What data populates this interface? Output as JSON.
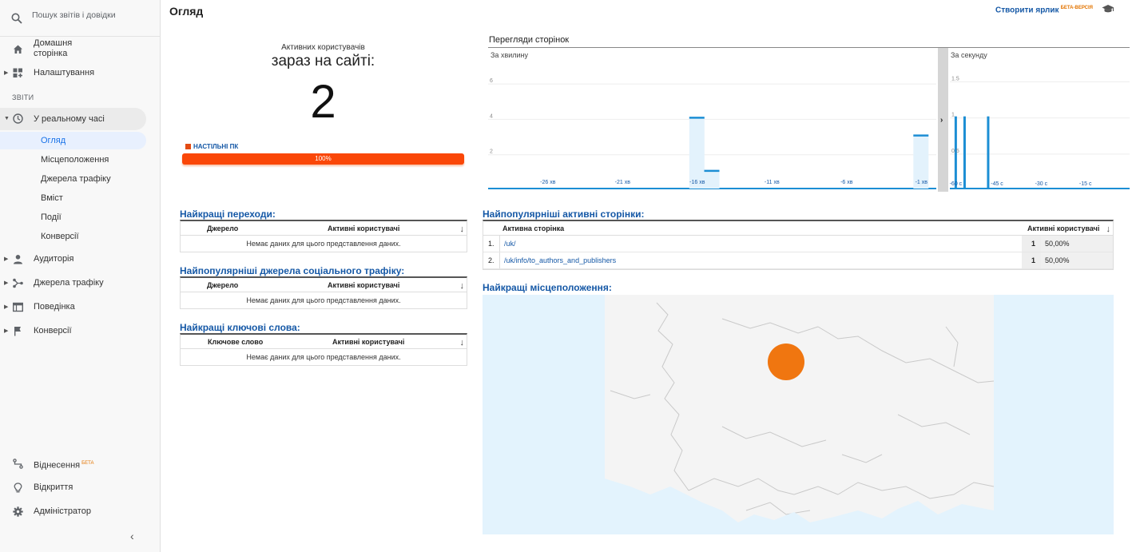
{
  "sidebar": {
    "search_placeholder": "Пошук звітів і довідки",
    "home": "Домашня сторінка",
    "customization": "Налаштування",
    "section_reports": "ЗВІТИ",
    "realtime": "У реальному часі",
    "realtime_items": [
      "Огляд",
      "Місцеположення",
      "Джерела трафіку",
      "Вміст",
      "Події",
      "Конверсії"
    ],
    "audience": "Аудиторія",
    "acquisition": "Джерела трафіку",
    "behavior": "Поведінка",
    "conversions": "Конверсії",
    "attribution": "Віднесення",
    "attribution_beta": "БЕТА",
    "discover": "Відкриття",
    "admin": "Адміністратор"
  },
  "header": {
    "title": "Огляд",
    "create_shortcut": "Створити ярлик",
    "beta": "БЕТА-ВЕРСІЯ"
  },
  "active": {
    "label_small": "Активних користувачів",
    "label_big": "зараз на сайті:",
    "count": "2",
    "device_label": "НАСТІЛЬНІ ПК",
    "device_percent": "100%",
    "device_fraction": 1.0
  },
  "pageviews": {
    "title": "Перегляди сторінок",
    "per_minute": {
      "label": "За хвилину",
      "y_ticks": [
        "6",
        "4",
        "2"
      ],
      "x_ticks": [
        "-26 хв",
        "-21 хв",
        "-16 хв",
        "-11 хв",
        "-6 хв",
        "-1 хв"
      ],
      "bars": [
        {
          "minute": -16,
          "value": 4
        },
        {
          "minute": -15,
          "value": 1
        },
        {
          "minute": -1,
          "value": 3
        }
      ]
    },
    "per_second": {
      "label": "За секунду",
      "y_ticks": [
        "1.5",
        "1",
        "0.5"
      ],
      "x_ticks": [
        "-60 с",
        "-45 с",
        "-30 с",
        "-15 с"
      ],
      "bars": [
        {
          "second": -59,
          "value": 1
        },
        {
          "second": -56,
          "value": 1
        },
        {
          "second": -48,
          "value": 1
        }
      ]
    }
  },
  "referrals": {
    "title": "Найкращі переходи:",
    "col1": "Джерело",
    "col2": "Активні користувачі",
    "empty": "Немає даних для цього представлення даних."
  },
  "social": {
    "title": "Найпопулярніші джерела соціального трафіку:",
    "col1": "Джерело",
    "col2": "Активні користувачі",
    "empty": "Немає даних для цього представлення даних."
  },
  "keywords": {
    "title": "Найкращі ключові слова:",
    "col1": "Ключове слово",
    "col2": "Активні користувачі",
    "empty": "Немає даних для цього представлення даних."
  },
  "top_pages": {
    "title": "Найпопулярніші активні сторінки:",
    "col1": "Активна сторінка",
    "col2": "Активні користувачі",
    "rows": [
      {
        "idx": "1.",
        "page": "/uk/",
        "users": "1",
        "pct": "50,00%"
      },
      {
        "idx": "2.",
        "page": "/uk/info/to_authors_and_publishers",
        "users": "1",
        "pct": "50,00%"
      }
    ]
  },
  "locations": {
    "title": "Найкращі місцеположення:"
  },
  "colors": {
    "accent_blue": "#1558a6",
    "chart_blue": "#1c8ed4",
    "device_orange": "#fa4708",
    "map_dot": "#f07610"
  }
}
